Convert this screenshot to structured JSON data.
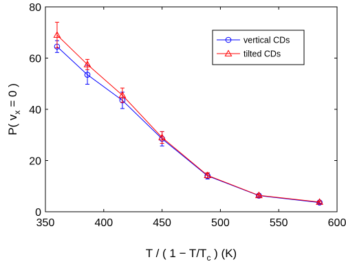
{
  "chart_data": {
    "type": "line",
    "xlabel": {
      "main": "T / ( 1 − T/T",
      "sub": "c",
      "tail": " ) (K)"
    },
    "ylabel": {
      "main": "P( v",
      "sub": "x",
      "tail": " = 0 )"
    },
    "xlim": [
      350,
      600
    ],
    "ylim": [
      0,
      80
    ],
    "xticks": [
      350,
      400,
      450,
      500,
      550,
      600
    ],
    "yticks": [
      0,
      20,
      40,
      60,
      80
    ],
    "grid": false,
    "legend_position": "top-right",
    "series": [
      {
        "name": "vertical CDs",
        "color": "#0000ff",
        "marker": "circle",
        "x": [
          360,
          386,
          416,
          450,
          489,
          533,
          585
        ],
        "y": [
          64.5,
          53.5,
          43.5,
          28.5,
          14.0,
          6.3,
          3.6
        ],
        "err": [
          2.3,
          3.7,
          3.2,
          2.8,
          1.2,
          0.6,
          0.5
        ]
      },
      {
        "name": "tilted CDs",
        "color": "#ff0000",
        "marker": "triangle",
        "x": [
          360,
          386,
          416,
          450,
          489,
          533,
          585
        ],
        "y": [
          69.0,
          57.5,
          45.5,
          29.0,
          14.2,
          6.4,
          3.8
        ],
        "err": [
          5.0,
          2.0,
          2.8,
          2.3,
          1.0,
          0.5,
          0.4
        ]
      }
    ]
  }
}
